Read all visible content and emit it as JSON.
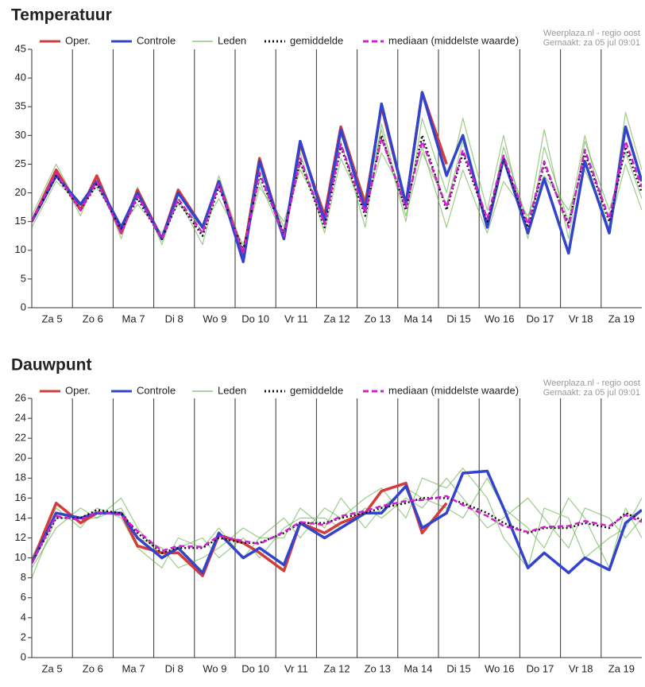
{
  "chart_data": [
    {
      "type": "line",
      "title": "Temperatuur",
      "annotations": [
        "Weerplaza.nl - regio oost",
        "Gemaakt: za 05 jul 09:01"
      ],
      "categories": [
        "Za 5",
        "Zo 6",
        "Ma 7",
        "Di 8",
        "Wo 9",
        "Do 10",
        "Vr 11",
        "Za 12",
        "Zo 13",
        "Ma 14",
        "Di 15",
        "Wo 16",
        "Do 17",
        "Vr 18",
        "Za 19"
      ],
      "x": [
        0,
        0.6,
        1.2,
        1.6,
        2.2,
        2.6,
        3.2,
        3.6,
        4.2,
        4.6,
        5.2,
        5.6,
        6.2,
        6.6,
        7.2,
        7.6,
        8.2,
        8.6,
        9.2,
        9.6,
        10.2,
        10.6,
        11.2,
        11.6,
        12.2,
        12.6,
        13.2,
        13.6,
        14.2,
        14.6,
        15
      ],
      "xlim": [
        0,
        15
      ],
      "xticks": [
        1,
        2,
        3,
        4,
        5,
        6,
        7,
        8,
        9,
        10,
        11,
        12,
        13,
        14
      ],
      "ylim": [
        0,
        45
      ],
      "yticks": [
        0,
        5,
        10,
        15,
        20,
        25,
        30,
        35,
        40,
        45
      ],
      "series": [
        {
          "name": "Leden",
          "color": "#5aaa3c",
          "members": [
            [
              15,
              24,
              16,
              23,
              12,
              21,
              11,
              19,
              11,
              22,
              9,
              24,
              14,
              25,
              15,
              30,
              19,
              31,
              15,
              33,
              20,
              33,
              17,
              30,
              12,
              28,
              15,
              30,
              13,
              34,
              24
            ],
            [
              14,
              22,
              18,
              21,
              14,
              18,
              13,
              18,
              14,
              19,
              11,
              22,
              12,
              27,
              13,
              26,
              17,
              27,
              19,
              28,
              14,
              24,
              13,
              22,
              16,
              23,
              17,
              24,
              14,
              25,
              17
            ],
            [
              16,
              25,
              17,
              22,
              13,
              20,
              12,
              20,
              13,
              23,
              10,
              21,
              15,
              24,
              16,
              29,
              14,
              32,
              16,
              27,
              18,
              29,
              14,
              28,
              15,
              31,
              12,
              29,
              17,
              27,
              19
            ]
          ]
        },
        {
          "name": "Oper.",
          "color": "#d43b3b",
          "values": [
            15,
            24,
            17,
            23,
            13,
            20.5,
            12,
            20.5,
            14,
            22,
            9,
            26,
            12,
            28.5,
            16,
            31.5,
            18,
            35,
            18,
            37.5,
            25,
            null,
            null,
            null,
            null,
            null,
            null,
            null,
            null,
            null,
            null
          ]
        },
        {
          "name": "Controle",
          "color": "#3344cc",
          "values": [
            15,
            23,
            18,
            22,
            14,
            20,
            12,
            20,
            14,
            22,
            8,
            25.5,
            12,
            29,
            15,
            31,
            17,
            35.5,
            18,
            37.5,
            23,
            30,
            14,
            26,
            13,
            22.5,
            9.5,
            25.5,
            13,
            31.5,
            22
          ]
        },
        {
          "name": "gemiddelde",
          "color": "#111111",
          "dash": "dotted",
          "values": [
            15,
            23,
            17,
            21.5,
            13.5,
            19,
            12,
            18.5,
            12.5,
            21,
            10,
            23,
            13,
            25.5,
            14,
            28,
            16,
            30,
            17,
            30,
            17,
            27,
            15,
            26,
            14,
            25,
            14.5,
            27,
            15,
            28,
            20
          ]
        },
        {
          "name": "mediaan (middelste waarde)",
          "color": "#d020d0",
          "dash": "dashed",
          "values": [
            15,
            23.5,
            17,
            22,
            13,
            19.5,
            12,
            19,
            13,
            21.5,
            9.5,
            23.5,
            12.5,
            26,
            14.5,
            28.5,
            16.5,
            29.5,
            17.5,
            29,
            17.5,
            27.5,
            15.5,
            26.5,
            14.5,
            25.5,
            14,
            27.5,
            15.5,
            29,
            21
          ]
        }
      ]
    },
    {
      "type": "line",
      "title": "Dauwpunt",
      "annotations": [
        "Weerplaza.nl - regio oost",
        "Gemaakt: za 05 jul 09:01"
      ],
      "categories": [
        "Za 5",
        "Zo 6",
        "Ma 7",
        "Di 8",
        "Wo 9",
        "Do 10",
        "Vr 11",
        "Za 12",
        "Zo 13",
        "Ma 14",
        "Di 15",
        "Wo 16",
        "Do 17",
        "Vr 18",
        "Za 19"
      ],
      "x": [
        0,
        0.6,
        1.2,
        1.6,
        2.2,
        2.6,
        3.2,
        3.6,
        4.2,
        4.6,
        5.2,
        5.6,
        6.2,
        6.6,
        7.2,
        7.6,
        8.2,
        8.6,
        9.2,
        9.6,
        10.2,
        10.6,
        11.2,
        11.6,
        12.2,
        12.6,
        13.2,
        13.6,
        14.2,
        14.6,
        15
      ],
      "xlim": [
        0,
        15
      ],
      "xticks": [
        1,
        2,
        3,
        4,
        5,
        6,
        7,
        8,
        9,
        10,
        11,
        12,
        13,
        14
      ],
      "ylim": [
        0,
        26
      ],
      "yticks": [
        0,
        2,
        4,
        6,
        8,
        10,
        12,
        14,
        16,
        18,
        20,
        22,
        24,
        26
      ],
      "series": [
        {
          "name": "Leden",
          "color": "#5aaa3c",
          "members": [
            [
              9,
              13,
              15,
              14,
              15,
              12,
              11,
              9,
              10,
              11,
              13,
              12,
              14,
              12,
              15,
              14,
              16,
              17,
              14,
              18,
              17,
              19,
              16,
              12,
              9,
              15,
              14,
              10,
              12,
              13,
              16
            ],
            [
              10,
              15,
              13,
              15,
              14,
              11,
              9,
              12,
              11,
              13,
              10,
              12,
              12,
              15,
              13,
              16,
              13,
              15,
              17,
              16,
              15,
              14,
              18,
              15,
              13,
              11,
              16,
              14,
              9,
              15,
              12
            ],
            [
              8,
              14,
              14,
              14,
              16,
              13,
              10,
              11,
              12,
              10,
              12,
              10,
              13,
              14,
              14,
              13,
              15,
              14,
              16,
              15,
              18,
              16,
              13,
              14,
              16,
              14,
              11,
              15,
              14,
              12,
              14
            ]
          ]
        },
        {
          "name": "Oper.",
          "color": "#d43b3b",
          "values": [
            9.5,
            15.5,
            13.5,
            14.5,
            14.5,
            11.2,
            10.5,
            10.5,
            8.2,
            12.3,
            11.5,
            10.5,
            8.7,
            13.5,
            12.5,
            13.5,
            14.5,
            16.7,
            17.5,
            12.5,
            15.5,
            null,
            null,
            null,
            null,
            null,
            null,
            null,
            null,
            null,
            null
          ]
        },
        {
          "name": "Controle",
          "color": "#3344cc",
          "values": [
            9.5,
            14.5,
            14,
            14.5,
            14.5,
            12,
            10,
            11,
            8.5,
            12.5,
            10,
            11,
            9.3,
            13.5,
            12,
            13,
            14.5,
            14.5,
            17.2,
            13,
            14.5,
            18.5,
            18.7,
            15,
            9,
            10.5,
            8.5,
            10,
            8.8,
            13.5,
            14.8
          ]
        },
        {
          "name": "gemiddelde",
          "color": "#111111",
          "dash": "dotted",
          "values": [
            9.5,
            14,
            14,
            14.8,
            14.5,
            12.5,
            10.5,
            11,
            11,
            12,
            11.5,
            11.5,
            12.5,
            13.5,
            13.5,
            14,
            14.5,
            15,
            15.5,
            16,
            16,
            15.5,
            14.5,
            13.5,
            12.5,
            13,
            13,
            13.5,
            13,
            14.5,
            13.8
          ]
        },
        {
          "name": "mediaan (middelste waarde)",
          "color": "#d020d0",
          "dash": "dashed",
          "values": [
            9.5,
            14.2,
            13.8,
            14.6,
            14.3,
            12.7,
            10.7,
            11.2,
            11.1,
            12.2,
            11.7,
            11.4,
            12.6,
            13.6,
            13.3,
            14.2,
            14.7,
            15.2,
            15.7,
            15.8,
            16.2,
            15.3,
            14.2,
            13.2,
            12.6,
            13.1,
            13.2,
            13.7,
            13.2,
            14.3,
            13.6
          ]
        }
      ]
    }
  ]
}
